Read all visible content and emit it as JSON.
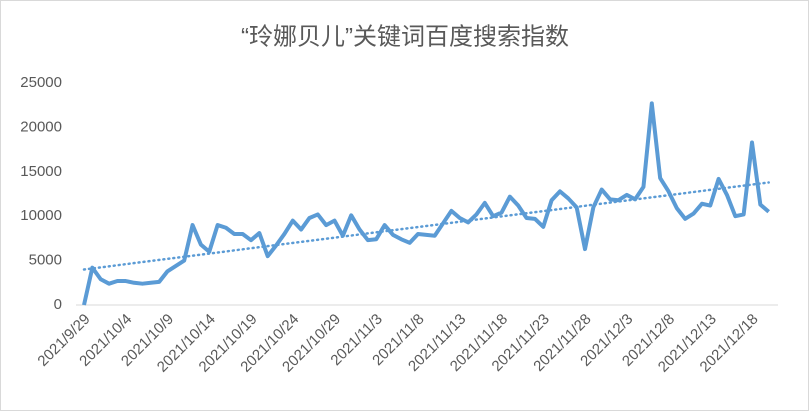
{
  "chart_data": {
    "type": "line",
    "title": "“玲娜贝儿”关键词百度搜索指数",
    "categories": [
      "2021/9/29",
      null,
      null,
      null,
      null,
      "2021/10/4",
      null,
      null,
      null,
      null,
      "2021/10/9",
      null,
      null,
      null,
      null,
      "2021/10/14",
      null,
      null,
      null,
      null,
      "2021/10/19",
      null,
      null,
      null,
      null,
      "2021/10/24",
      null,
      null,
      null,
      null,
      "2021/10/29",
      null,
      null,
      null,
      null,
      "2021/11/3",
      null,
      null,
      null,
      null,
      "2021/11/8",
      null,
      null,
      null,
      null,
      "2021/11/13",
      null,
      null,
      null,
      null,
      "2021/11/18",
      null,
      null,
      null,
      null,
      "2021/11/23",
      null,
      null,
      null,
      null,
      "2021/11/28",
      null,
      null,
      null,
      null,
      "2021/12/3",
      null,
      null,
      null,
      null,
      "2021/12/8",
      null,
      null,
      null,
      null,
      "2021/12/13",
      null,
      null,
      null,
      null,
      "2021/12/18",
      null,
      null
    ],
    "series": [
      {
        "color": "#5b9bd5",
        "values": [
          0,
          4200,
          2900,
          2400,
          2700,
          2700,
          2500,
          2400,
          2500,
          2600,
          3800,
          4400,
          5000,
          9000,
          6800,
          6000,
          9000,
          8700,
          8000,
          8000,
          7300,
          8100,
          5500,
          6700,
          8000,
          9500,
          8500,
          9800,
          10200,
          9000,
          9500,
          7800,
          10100,
          8500,
          7300,
          7400,
          9000,
          7900,
          7400,
          7000,
          8000,
          7900,
          7800,
          9200,
          10600,
          9800,
          9300,
          10200,
          11500,
          10000,
          10400,
          12200,
          11200,
          9800,
          9700,
          8800,
          11800,
          12800,
          12000,
          11000,
          6300,
          11000,
          13000,
          11900,
          11800,
          12400,
          11900,
          13300,
          22700,
          14300,
          12800,
          10900,
          9700,
          10300,
          11400,
          11200,
          14200,
          12400,
          10000,
          10200,
          18300,
          11300,
          10500
        ]
      }
    ],
    "trendline": [
      4000,
      13800
    ],
    "trendline_color": "#5b9bd5",
    "ylim": [
      0,
      25000
    ],
    "yticks": [
      0,
      5000,
      10000,
      15000,
      20000,
      25000
    ],
    "grid": false
  }
}
